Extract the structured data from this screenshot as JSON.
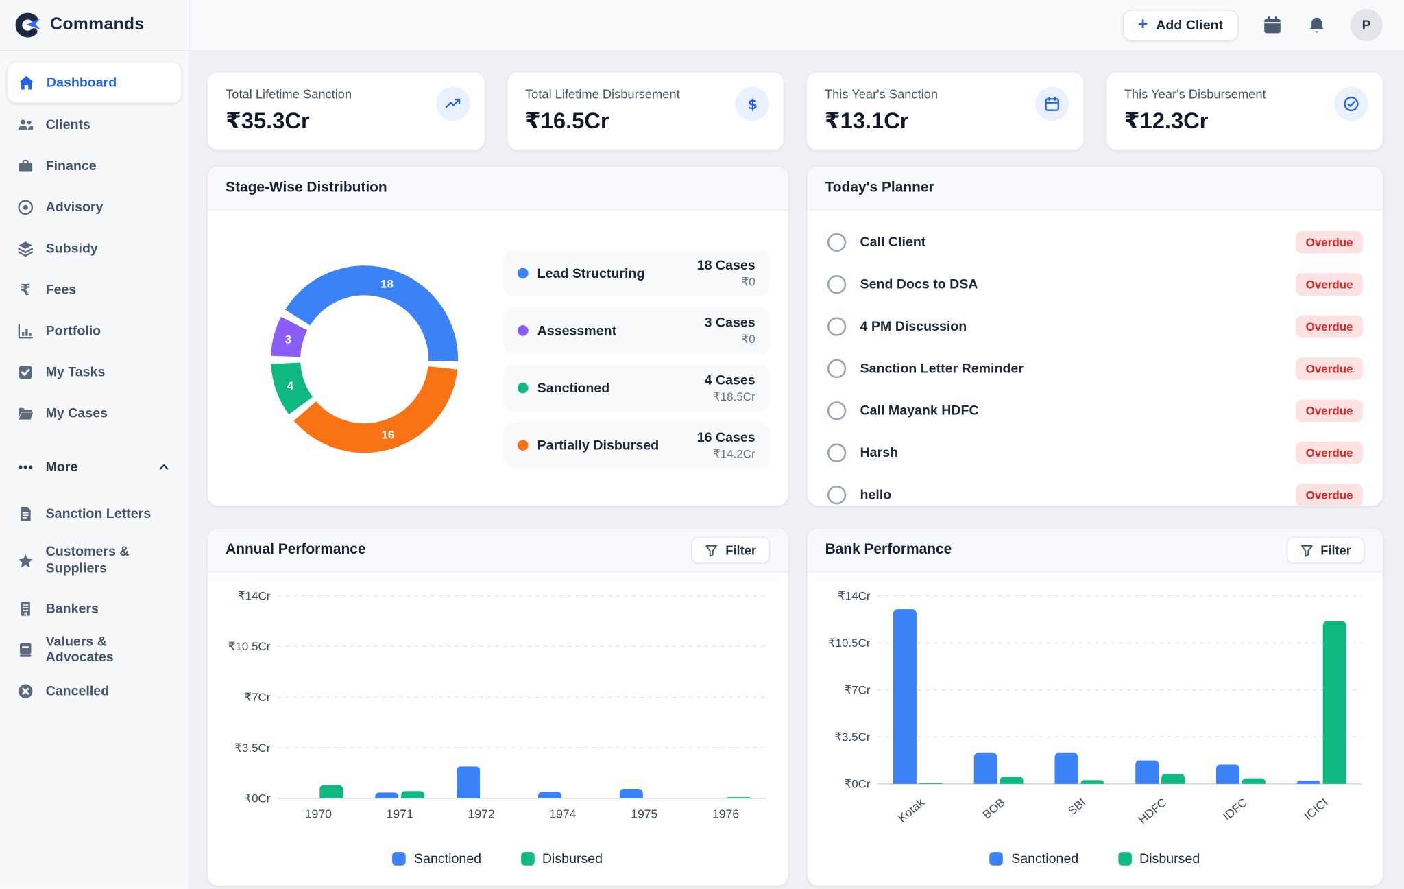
{
  "app": {
    "name": "Commands"
  },
  "header": {
    "add_client_label": "Add Client",
    "avatar_initial": "P"
  },
  "sidebar": {
    "more_label": "More",
    "items": [
      {
        "label": "Dashboard",
        "icon": "home-icon",
        "active": true
      },
      {
        "label": "Clients",
        "icon": "users-icon"
      },
      {
        "label": "Finance",
        "icon": "briefcase-icon"
      },
      {
        "label": "Advisory",
        "icon": "target-icon"
      },
      {
        "label": "Subsidy",
        "icon": "layers-icon"
      },
      {
        "label": "Fees",
        "icon": "rupee-icon"
      },
      {
        "label": "Portfolio",
        "icon": "bar-chart-icon"
      },
      {
        "label": "My Tasks",
        "icon": "check-square-icon"
      },
      {
        "label": "My Cases",
        "icon": "folder-icon"
      },
      {
        "label": "Sanction Letters",
        "icon": "document-icon"
      },
      {
        "label": "Customers & Suppliers",
        "icon": "star-icon"
      },
      {
        "label": "Bankers",
        "icon": "building-icon"
      },
      {
        "label": "Valuers & Advocates",
        "icon": "book-icon"
      },
      {
        "label": "Cancelled",
        "icon": "x-circle-icon"
      }
    ]
  },
  "stats": [
    {
      "label": "Total Lifetime Sanction",
      "value": "₹35.3Cr",
      "icon": "trending-up-icon"
    },
    {
      "label": "Total Lifetime Disbursement",
      "value": "₹16.5Cr",
      "icon": "dollar-circle-icon"
    },
    {
      "label": "This Year's Sanction",
      "value": "₹13.1Cr",
      "icon": "calendar-icon"
    },
    {
      "label": "This Year's Disbursement",
      "value": "₹12.3Cr",
      "icon": "check-circle-icon"
    }
  ],
  "panels": {
    "stage": {
      "title": "Stage-Wise Distribution"
    },
    "planner": {
      "title": "Today's Planner",
      "items": [
        {
          "label": "Call Client",
          "badge": "Overdue"
        },
        {
          "label": "Send Docs to DSA",
          "badge": "Overdue"
        },
        {
          "label": "4 PM Discussion",
          "badge": "Overdue"
        },
        {
          "label": "Sanction Letter Reminder",
          "badge": "Overdue"
        },
        {
          "label": "Call Mayank HDFC",
          "badge": "Overdue"
        },
        {
          "label": "Harsh",
          "badge": "Overdue"
        },
        {
          "label": "hello",
          "badge": "Overdue"
        }
      ]
    },
    "annual": {
      "title": "Annual Performance",
      "filter_label": "Filter"
    },
    "bank": {
      "title": "Bank Performance",
      "filter_label": "Filter"
    }
  },
  "colors": {
    "sanctioned_blue": "#3b82f6",
    "disbursed_green": "#10b981",
    "assessment_purple": "#8b5cf6",
    "partially_disbursed_orange": "#f97316",
    "active_accent": "#2563eb",
    "overdue_bg": "#fee2e2",
    "overdue_text": "#dc2626"
  },
  "chart_data": [
    {
      "id": "stage-donut",
      "type": "pie",
      "variant": "donut",
      "title": "Stage-Wise Distribution",
      "legend_position": "right",
      "segments": [
        {
          "label": "Lead Structuring",
          "value": 18,
          "cases": "18 Cases",
          "amount": "₹0",
          "color": "#3b82f6"
        },
        {
          "label": "Assessment",
          "value": 3,
          "cases": "3 Cases",
          "amount": "₹0",
          "color": "#8b5cf6"
        },
        {
          "label": "Sanctioned",
          "value": 4,
          "cases": "4 Cases",
          "amount": "₹18.5Cr",
          "color": "#10b981"
        },
        {
          "label": "Partially Disbursed",
          "value": 16,
          "cases": "16 Cases",
          "amount": "₹14.2Cr",
          "color": "#f97316"
        }
      ]
    },
    {
      "id": "annual-bars",
      "type": "bar",
      "title": "Annual Performance",
      "categories": [
        "1970",
        "1971",
        "1972",
        "1974",
        "1975",
        "1976"
      ],
      "series": [
        {
          "name": "Sanctioned",
          "color": "#3b82f6",
          "values": [
            0,
            0.4,
            2.2,
            0.45,
            0.65,
            0
          ]
        },
        {
          "name": "Disbursed",
          "color": "#10b981",
          "values": [
            0.9,
            0.5,
            0,
            0,
            0,
            0.08
          ]
        }
      ],
      "ylabel": "Cr",
      "ylim": [
        0,
        14
      ],
      "yticks": [
        0,
        3.5,
        7,
        10.5,
        14
      ],
      "ytick_labels": [
        "₹0Cr",
        "₹3.5Cr",
        "₹7Cr",
        "₹10.5Cr",
        "₹14Cr"
      ],
      "grid": "dashed-horizontal",
      "legend_position": "bottom"
    },
    {
      "id": "bank-bars",
      "type": "bar",
      "title": "Bank Performance",
      "categories": [
        "Kotak",
        "BOB",
        "SBI",
        "HDFC",
        "IDFC",
        "ICICI"
      ],
      "series": [
        {
          "name": "Sanctioned",
          "color": "#3b82f6",
          "values": [
            13,
            2.3,
            2.3,
            1.75,
            1.45,
            0.25
          ]
        },
        {
          "name": "Disbursed",
          "color": "#10b981",
          "values": [
            0.05,
            0.55,
            0.28,
            0.75,
            0.42,
            12.1
          ]
        }
      ],
      "ylabel": "Cr",
      "ylim": [
        0,
        14
      ],
      "yticks": [
        0,
        3.5,
        7,
        10.5,
        14
      ],
      "ytick_labels": [
        "₹0Cr",
        "₹3.5Cr",
        "₹7Cr",
        "₹10.5Cr",
        "₹14Cr"
      ],
      "grid": "dashed-horizontal",
      "rotated_x_labels": true,
      "legend_position": "bottom"
    }
  ]
}
